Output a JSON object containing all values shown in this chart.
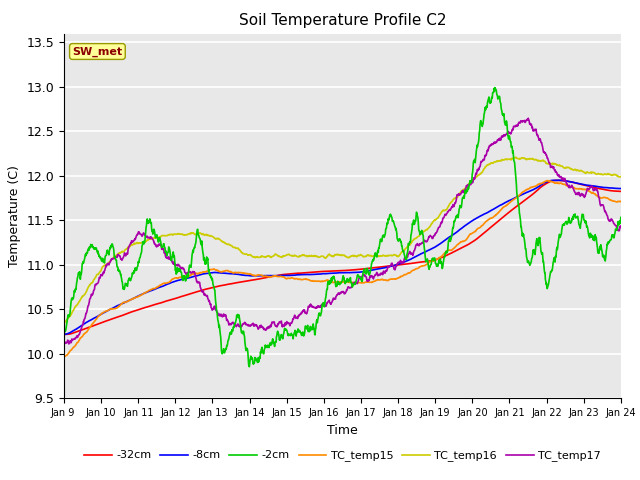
{
  "title": "Soil Temperature Profile C2",
  "xlabel": "Time",
  "ylabel": "Temperature (C)",
  "ylim": [
    9.5,
    13.6
  ],
  "annotation_text": "SW_met",
  "annotation_color": "#8B0000",
  "annotation_bg": "#FFFF99",
  "plot_bg": "#E8E8E8",
  "series": {
    "neg32cm": {
      "label": "-32cm",
      "color": "#FF0000",
      "lw": 1.2
    },
    "neg8cm": {
      "label": "-8cm",
      "color": "#0000FF",
      "lw": 1.2
    },
    "neg2cm": {
      "label": "-2cm",
      "color": "#00CC00",
      "lw": 1.2
    },
    "tc15": {
      "label": "TC_temp15",
      "color": "#FF8C00",
      "lw": 1.2
    },
    "tc16": {
      "label": "TC_temp16",
      "color": "#CCCC00",
      "lw": 1.2
    },
    "tc17": {
      "label": "TC_temp17",
      "color": "#AA00AA",
      "lw": 1.2
    }
  },
  "xtick_labels": [
    "Jan 9 ",
    "Jan 10",
    "Jan 11",
    "Jan 12",
    "Jan 13",
    "Jan 14",
    "Jan 15",
    "Jan 16",
    "Jan 17",
    "Jan 18",
    "Jan 19",
    "Jan 20",
    "Jan 21",
    "Jan 22",
    "Jan 23",
    "Jan 24"
  ],
  "ytick_vals": [
    9.5,
    10.0,
    10.5,
    11.0,
    11.5,
    12.0,
    12.5,
    13.0,
    13.5
  ]
}
